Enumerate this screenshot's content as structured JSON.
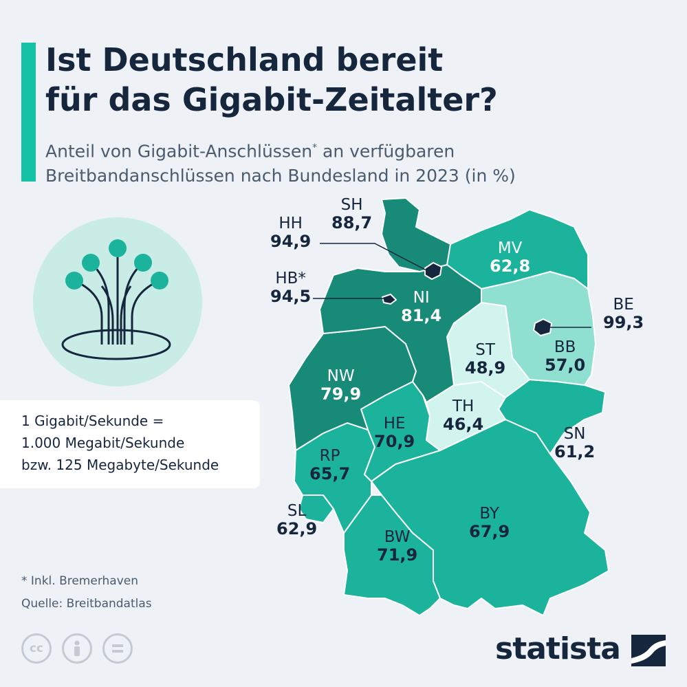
{
  "title_line1": "Ist Deutschland bereit",
  "title_line2": "für das Gigabit-Zeitalter?",
  "subtitle_line1a": "Anteil von Gigabit-Anschlüssen",
  "subtitle_star": "*",
  "subtitle_line1b": " an verfügbaren",
  "subtitle_line2": "Breitbandanschlüssen nach Bundesland in 2023 (in %)",
  "info": {
    "line1": "1 Gigabit/Sekunde = ",
    "line2": "1.000 Megabit/Sekunde",
    "line3": "bzw. 125 Megabyte/Sekunde"
  },
  "states": {
    "SH": {
      "abbr": "SH",
      "value": "88,7"
    },
    "HH": {
      "abbr": "HH",
      "value": "94,9"
    },
    "HB": {
      "abbr": "HB*",
      "value": "94,5"
    },
    "MV": {
      "abbr": "MV",
      "value": "62,8"
    },
    "NI": {
      "abbr": "NI",
      "value": "81,4"
    },
    "BE": {
      "abbr": "BE",
      "value": "99,3"
    },
    "ST": {
      "abbr": "ST",
      "value": "48,9"
    },
    "BB": {
      "abbr": "BB",
      "value": "57,0"
    },
    "NW": {
      "abbr": "NW",
      "value": "79,9"
    },
    "TH": {
      "abbr": "TH",
      "value": "46,4"
    },
    "HE": {
      "abbr": "HE",
      "value": "70,9"
    },
    "SN": {
      "abbr": "SN",
      "value": "61,2"
    },
    "RP": {
      "abbr": "RP",
      "value": "65,7"
    },
    "SL": {
      "abbr": "SL",
      "value": "62,9"
    },
    "BY": {
      "abbr": "BY",
      "value": "67,9"
    },
    "BW": {
      "abbr": "BW",
      "value": "71,9"
    }
  },
  "footnote": "* Inkl. Bremerhaven",
  "source": "Quelle: Breitbandatlas",
  "license_icons": [
    "cc-icon",
    "person-icon",
    "equals-icon"
  ],
  "cc_text": "cc",
  "brand": "statista",
  "colors": {
    "accent": "#16c2a6",
    "dark_teal": "#178a78",
    "mid_teal": "#1bb39b",
    "light_teal": "#8fe0d1",
    "pale_teal": "#d2f4ee",
    "navy": "#16263d"
  }
}
